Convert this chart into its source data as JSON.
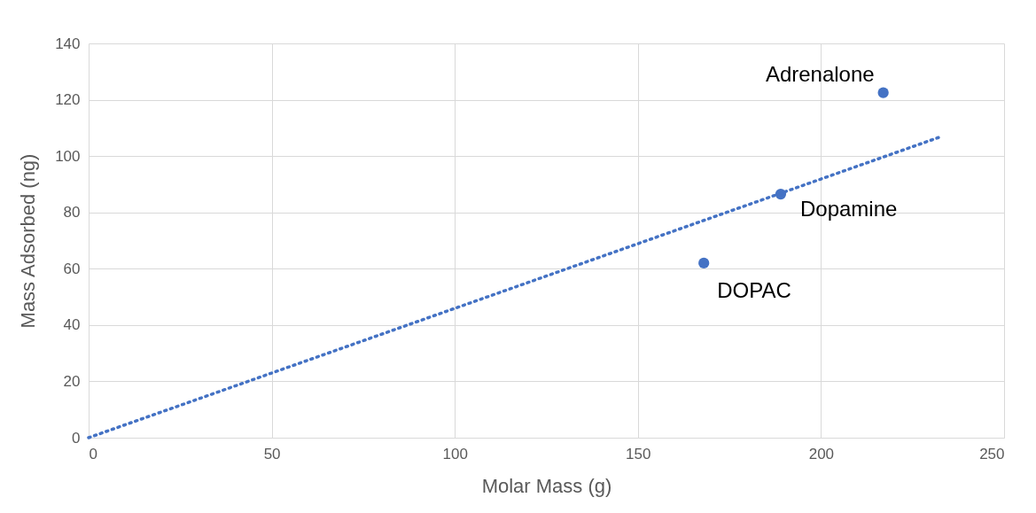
{
  "chart_data": {
    "type": "scatter",
    "xlabel": "Molar Mass  (g)",
    "ylabel": "Mass Adsorbed (ng)",
    "series": [
      {
        "color": "#4472c4",
        "x": [
          168,
          189,
          217
        ],
        "values": [
          62,
          86.5,
          122.5
        ],
        "marker": "circle"
      },
      {
        "type": "line",
        "color": "#4472c4",
        "x": [
          0,
          233
        ],
        "values": [
          0,
          107
        ],
        "line_style": "dotted",
        "marker": "none"
      }
    ],
    "annotations": [
      {
        "text": "DOPAC",
        "x": 168,
        "y": 62
      },
      {
        "text": "Dopamine",
        "x": 189,
        "y": 86.5
      },
      {
        "text": "Adrenalone",
        "x": 217,
        "y": 122.5
      }
    ],
    "xlim": [
      0,
      250
    ],
    "xticks": [
      0,
      50,
      100,
      150,
      200,
      250
    ],
    "ylim": [
      0,
      140
    ],
    "yticks": [
      0,
      20,
      40,
      60,
      80,
      100,
      120,
      140
    ],
    "grid": true,
    "legend": false
  }
}
